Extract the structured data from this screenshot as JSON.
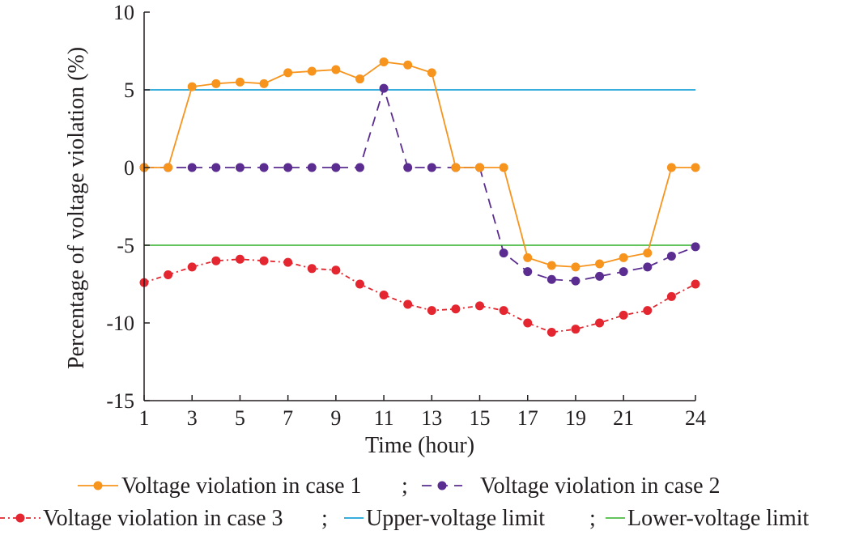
{
  "chart_data": {
    "type": "line",
    "xlabel": "Time (hour)",
    "ylabel": "Percentage of voltage violation (%)",
    "xlim": [
      1,
      24
    ],
    "ylim": [
      -15,
      10
    ],
    "x": [
      1,
      2,
      3,
      4,
      5,
      6,
      7,
      8,
      9,
      10,
      11,
      12,
      13,
      14,
      15,
      16,
      17,
      18,
      19,
      20,
      21,
      22,
      23,
      24
    ],
    "xticks": [
      1,
      3,
      5,
      7,
      9,
      11,
      13,
      15,
      17,
      19,
      21,
      24
    ],
    "yticks": [
      10,
      5,
      0,
      -5,
      -10,
      -15
    ],
    "ytick_labels": [
      "10",
      "5",
      "0",
      "-5",
      "-10",
      "-15"
    ],
    "series": [
      {
        "name": "Voltage violation in case 1",
        "color": "#f7941d",
        "style": "solid",
        "marker": "circle",
        "values": [
          0,
          0,
          5.2,
          5.4,
          5.5,
          5.4,
          6.1,
          6.2,
          6.3,
          5.7,
          6.8,
          6.6,
          6.1,
          0,
          0,
          0,
          -5.8,
          -6.3,
          -6.4,
          -6.2,
          -5.8,
          -5.5,
          0,
          0
        ]
      },
      {
        "name": "Voltage violation in case 2",
        "color": "#5b2d90",
        "style": "dashed",
        "marker": "circle",
        "values": [
          0,
          0,
          0,
          0,
          0,
          0,
          0,
          0,
          0,
          0,
          5.1,
          0,
          0,
          0,
          0,
          -5.5,
          -6.7,
          -7.2,
          -7.3,
          -7.0,
          -6.7,
          -6.4,
          -5.7,
          -5.1
        ]
      },
      {
        "name": "Voltage violation in case 3",
        "color": "#e3262f",
        "style": "dashdot",
        "marker": "circle",
        "values": [
          -7.4,
          -6.9,
          -6.4,
          -6.0,
          -5.9,
          -6.0,
          -6.1,
          -6.5,
          -6.6,
          -7.5,
          -8.2,
          -8.8,
          -9.2,
          -9.1,
          -8.9,
          -9.2,
          -10.0,
          -10.6,
          -10.4,
          -10.0,
          -9.5,
          -9.2,
          -8.3,
          -7.5
        ]
      },
      {
        "name": "Upper-voltage limit",
        "color": "#1ba3d8",
        "style": "solid",
        "marker": "none",
        "values": [
          5,
          5,
          5,
          5,
          5,
          5,
          5,
          5,
          5,
          5,
          5,
          5,
          5,
          5,
          5,
          5,
          5,
          5,
          5,
          5,
          5,
          5,
          5,
          5
        ]
      },
      {
        "name": "Lower-voltage limit",
        "color": "#4dbb47",
        "style": "solid",
        "marker": "none",
        "values": [
          -5,
          -5,
          -5,
          -5,
          -5,
          -5,
          -5,
          -5,
          -5,
          -5,
          -5,
          -5,
          -5,
          -5,
          -5,
          -5,
          -5,
          -5,
          -5,
          -5,
          -5,
          -5,
          -5,
          -5
        ]
      }
    ],
    "legend": {
      "position": "bottom",
      "row1_sep": ";",
      "row2_sep": ";"
    }
  }
}
